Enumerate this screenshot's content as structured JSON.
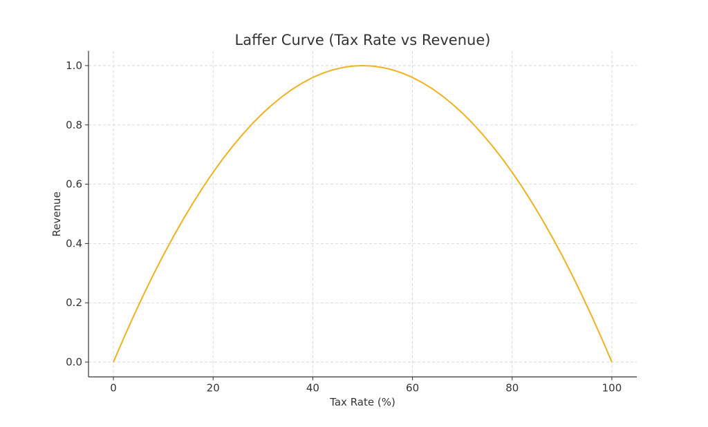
{
  "chart_data": {
    "type": "line",
    "title": "Laffer Curve (Tax Rate vs Revenue)",
    "xlabel": "Tax Rate (%)",
    "ylabel": "Revenue",
    "xlim": [
      -5,
      105
    ],
    "ylim": [
      -0.05,
      1.05
    ],
    "xticks": [
      0,
      20,
      40,
      60,
      80,
      100
    ],
    "xtick_labels": [
      "0",
      "20",
      "40",
      "60",
      "80",
      "100"
    ],
    "yticks": [
      0.0,
      0.2,
      0.4,
      0.6,
      0.8,
      1.0
    ],
    "ytick_labels": [
      "0.0",
      "0.2",
      "0.4",
      "0.6",
      "0.8",
      "1.0"
    ],
    "grid": true,
    "series": [
      {
        "name": "Revenue",
        "color": "#f2b01e",
        "x": [
          0,
          2,
          4,
          6,
          8,
          10,
          12,
          14,
          16,
          18,
          20,
          22,
          24,
          26,
          28,
          30,
          32,
          34,
          36,
          38,
          40,
          42,
          44,
          46,
          48,
          50,
          52,
          54,
          56,
          58,
          60,
          62,
          64,
          66,
          68,
          70,
          72,
          74,
          76,
          78,
          80,
          82,
          84,
          86,
          88,
          90,
          92,
          94,
          96,
          98,
          100
        ],
        "y": [
          0,
          0.0784,
          0.1536,
          0.2256,
          0.2944,
          0.36,
          0.4224,
          0.4816,
          0.5376,
          0.5904,
          0.64,
          0.6864,
          0.7296,
          0.7696,
          0.8064,
          0.84,
          0.8704,
          0.8976,
          0.9216,
          0.9424,
          0.96,
          0.9744,
          0.9856,
          0.9936,
          0.9984,
          1.0,
          0.9984,
          0.9936,
          0.9856,
          0.9744,
          0.96,
          0.9424,
          0.9216,
          0.8976,
          0.8704,
          0.84,
          0.8064,
          0.7696,
          0.7296,
          0.6864,
          0.64,
          0.5904,
          0.5376,
          0.4816,
          0.4224,
          0.36,
          0.2944,
          0.2256,
          0.1536,
          0.0784,
          0
        ]
      }
    ]
  }
}
